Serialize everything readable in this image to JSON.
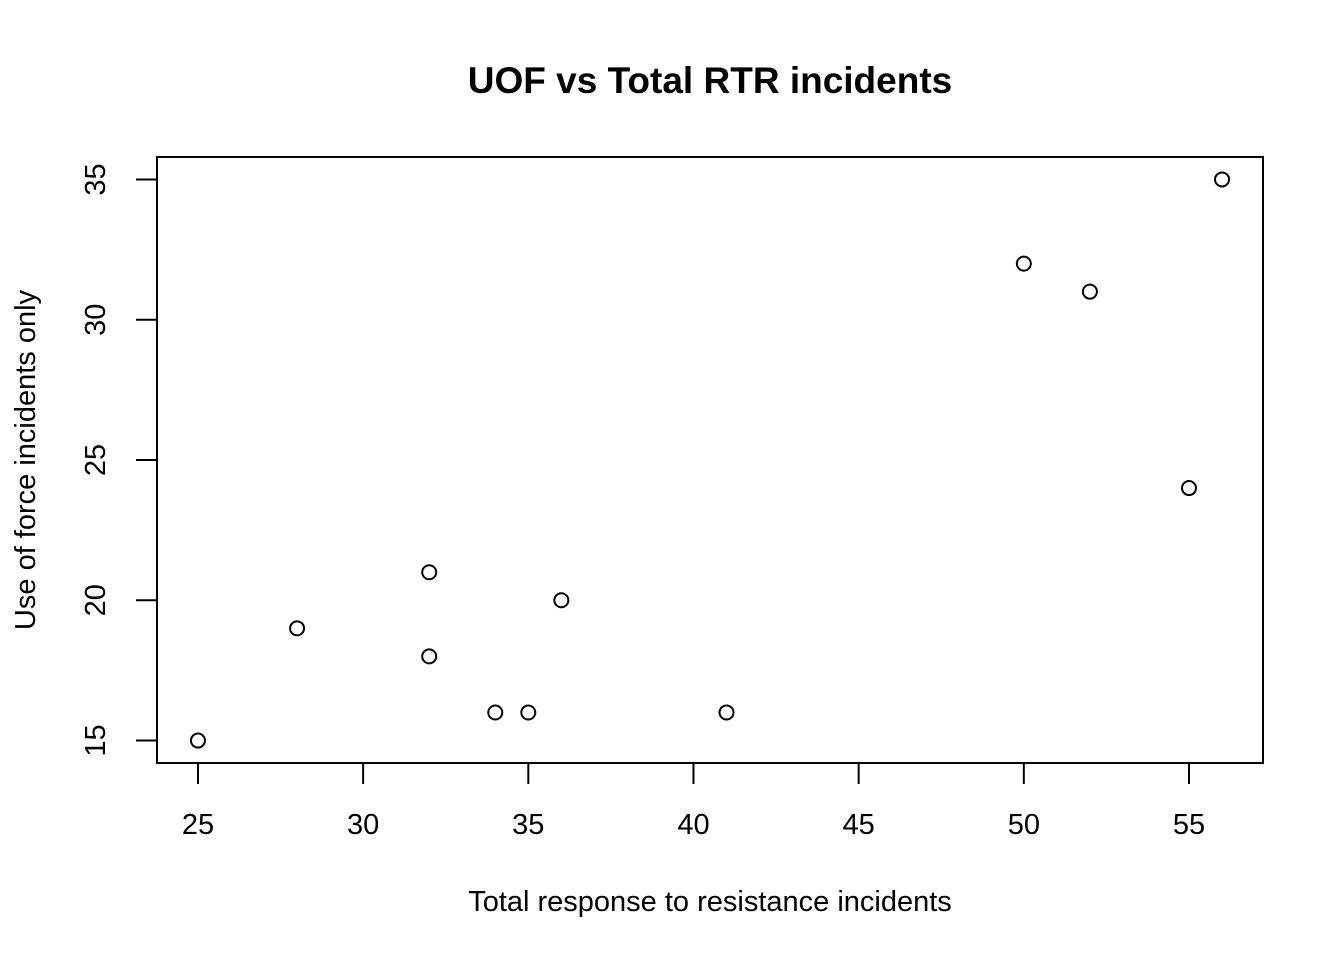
{
  "chart_data": {
    "type": "scatter",
    "title": "UOF vs Total RTR incidents",
    "xlabel": "Total response to resistance incidents",
    "ylabel": "Use of force incidents only",
    "xlim": [
      23.76,
      57.24
    ],
    "ylim": [
      14.2,
      35.8
    ],
    "x_ticks": [
      25,
      30,
      35,
      40,
      45,
      50,
      55
    ],
    "y_ticks": [
      15,
      20,
      25,
      30,
      35
    ],
    "grid": false,
    "point_shape": "open-circle",
    "series": [
      {
        "points": [
          {
            "x": 25,
            "y": 15
          },
          {
            "x": 28,
            "y": 19
          },
          {
            "x": 32,
            "y": 21
          },
          {
            "x": 32,
            "y": 18
          },
          {
            "x": 34,
            "y": 16
          },
          {
            "x": 35,
            "y": 16
          },
          {
            "x": 36,
            "y": 20
          },
          {
            "x": 41,
            "y": 16
          },
          {
            "x": 50,
            "y": 32
          },
          {
            "x": 52,
            "y": 31
          },
          {
            "x": 55,
            "y": 24
          },
          {
            "x": 56,
            "y": 35
          }
        ]
      }
    ]
  }
}
